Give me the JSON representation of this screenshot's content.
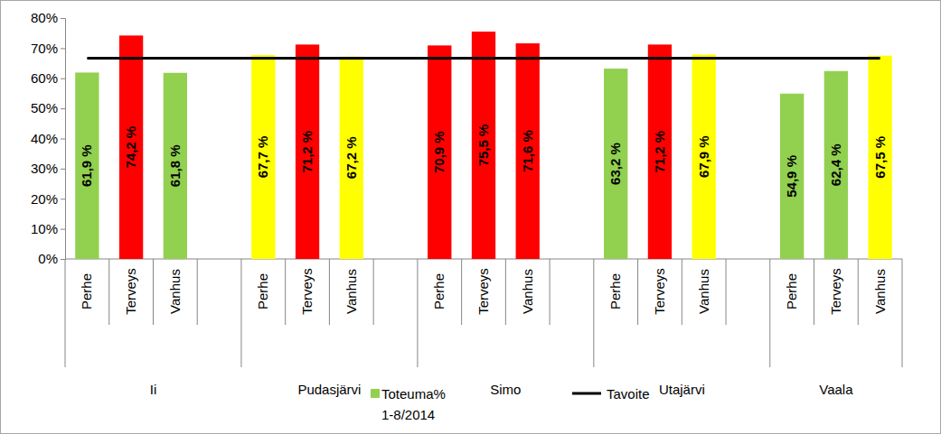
{
  "chart_data": {
    "type": "bar",
    "categories": [
      "Perhe",
      "Terveys",
      "Vanhus",
      "Perhe",
      "Terveys",
      "Vanhus",
      "Perhe",
      "Terveys",
      "Vanhus",
      "Perhe",
      "Terveys",
      "Vanhus",
      "Perhe",
      "Terveys",
      "Vanhus"
    ],
    "groups": [
      "Ii",
      "Pudasjärvi",
      "Simo",
      "Utajärvi",
      "Vaala"
    ],
    "series": [
      {
        "name": "Toteuma% 1-8/2014",
        "type": "bar",
        "colors": [
          "#92D050",
          "#FF0000",
          "#92D050",
          "#FFFF00",
          "#FF0000",
          "#FFFF00",
          "#FF0000",
          "#FF0000",
          "#FF0000",
          "#92D050",
          "#FF0000",
          "#FFFF00",
          "#92D050",
          "#92D050",
          "#FFFF00"
        ],
        "values": [
          61.9,
          74.2,
          61.8,
          67.7,
          71.2,
          67.2,
          70.9,
          75.5,
          71.6,
          63.2,
          71.2,
          67.9,
          54.9,
          62.4,
          67.5
        ],
        "value_labels": [
          "61,9 %",
          "74,2 %",
          "61,8 %",
          "67,7 %",
          "71,2 %",
          "67,2 %",
          "70,9 %",
          "75,5 %",
          "71,6 %",
          "63,2 %",
          "71,2 %",
          "67,9 %",
          "54,9 %",
          "62,4 %",
          "67,5 %"
        ]
      },
      {
        "name": "Tavoite",
        "type": "line",
        "color": "#000000",
        "values": [
          66.7,
          66.7,
          66.7,
          66.7,
          66.7,
          66.7,
          66.7,
          66.7,
          66.7,
          66.7,
          66.7,
          66.7,
          66.7,
          66.7,
          66.7
        ]
      }
    ],
    "ylim": [
      0,
      80
    ],
    "yticks": [
      {
        "value": 0,
        "label": "0%"
      },
      {
        "value": 10,
        "label": "10%"
      },
      {
        "value": 20,
        "label": "20%"
      },
      {
        "value": 30,
        "label": "30%"
      },
      {
        "value": 40,
        "label": "40%"
      },
      {
        "value": 50,
        "label": "50%"
      },
      {
        "value": 60,
        "label": "60%"
      },
      {
        "value": 70,
        "label": "70%"
      },
      {
        "value": 80,
        "label": "80%"
      }
    ],
    "grid": false,
    "data_labels": true,
    "legend": "bottom"
  }
}
